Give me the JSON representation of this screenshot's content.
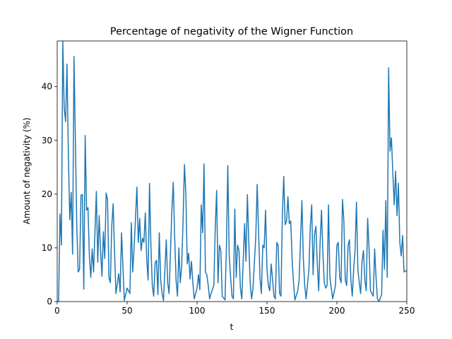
{
  "chart_data": {
    "type": "line",
    "title": "Percentage of negativity of the Wigner Function",
    "x_label": "t",
    "y_label": "Amount of negativity (%)",
    "x": [
      0,
      1,
      2,
      3,
      4,
      5,
      6,
      7,
      8,
      9,
      10,
      11,
      12,
      13,
      14,
      15,
      16,
      17,
      18,
      19,
      20,
      21,
      22,
      23,
      24,
      25,
      26,
      28,
      29,
      30,
      31,
      32,
      33,
      34,
      35,
      36,
      37,
      38,
      39,
      40,
      41,
      42,
      44,
      45,
      46,
      48,
      50,
      52,
      53,
      54,
      55,
      57,
      58,
      59,
      60,
      61,
      62,
      63,
      64,
      65,
      66,
      67,
      68,
      69,
      70,
      71,
      72,
      73,
      74,
      75,
      76,
      78,
      79,
      80,
      82,
      83,
      84,
      85,
      86,
      87,
      88,
      89,
      90,
      91,
      92,
      93,
      94,
      95,
      96,
      97,
      98,
      100,
      101,
      102,
      103,
      104,
      105,
      106,
      107,
      108,
      109,
      110,
      112,
      113,
      114,
      115,
      116,
      117,
      118,
      120,
      121,
      122,
      123,
      124,
      125,
      126,
      127,
      128,
      129,
      130,
      131,
      132,
      134,
      135,
      136,
      137,
      138,
      139,
      140,
      142,
      143,
      144,
      145,
      146,
      147,
      148,
      149,
      150,
      151,
      152,
      153,
      154,
      155,
      156,
      157,
      158,
      159,
      160,
      161,
      162,
      163,
      164,
      165,
      166,
      167,
      168,
      169,
      170,
      172,
      173,
      174,
      175,
      176,
      177,
      178,
      180,
      181,
      182,
      183,
      184,
      185,
      186,
      187,
      188,
      189,
      190,
      191,
      192,
      193,
      194,
      195,
      196,
      197,
      199,
      200,
      201,
      202,
      203,
      204,
      205,
      206,
      207,
      208,
      209,
      210,
      211,
      212,
      213,
      214,
      215,
      216,
      217,
      218,
      219,
      220,
      221,
      222,
      223,
      224,
      225,
      226,
      227,
      228,
      229,
      230,
      232,
      233,
      234,
      235,
      236,
      237,
      238,
      239,
      240,
      241,
      242,
      243,
      244,
      245,
      246,
      247,
      248,
      250
    ],
    "series": [
      {
        "name": "negativity",
        "color": "#1f77b4",
        "values": [
          0,
          0,
          16.3,
          10.5,
          48.5,
          36,
          33.5,
          44.2,
          27,
          15.2,
          20.3,
          8.8,
          45.6,
          30,
          14,
          5.5,
          6,
          19.8,
          19.9,
          2.3,
          30.9,
          17,
          17.5,
          8.5,
          4.5,
          9.8,
          5.5,
          20.5,
          7.3,
          16,
          9.5,
          4.7,
          13,
          8,
          20.2,
          19,
          4.5,
          3.5,
          14,
          18.2,
          9.3,
          1.5,
          5.2,
          1.8,
          12.8,
          0.2,
          2.5,
          1.5,
          14.7,
          5.5,
          10,
          21.3,
          11,
          15.5,
          9.5,
          11.8,
          11,
          16.5,
          8,
          4,
          22,
          10.5,
          3,
          1,
          7.2,
          7.7,
          1.3,
          12.8,
          4,
          1.5,
          0.2,
          11.5,
          3.5,
          1.5,
          17,
          22.2,
          12,
          4,
          1,
          10,
          3.5,
          6.5,
          15,
          25.5,
          20,
          7,
          9,
          4.2,
          7.5,
          3.5,
          0.5,
          2.5,
          5,
          2.2,
          18,
          12.8,
          25.6,
          5.5,
          5,
          3,
          0.5,
          1.5,
          3,
          13.5,
          20.7,
          3.5,
          10.5,
          9.5,
          1,
          0.3,
          10,
          25.3,
          8.5,
          4.5,
          1,
          0.5,
          17.2,
          4.5,
          10.5,
          9.5,
          2.5,
          0.5,
          14.5,
          7.5,
          19.9,
          11,
          3.5,
          0.5,
          2.5,
          12,
          21.8,
          13,
          4.5,
          1.5,
          10.5,
          10,
          17,
          6,
          3,
          2,
          7,
          4.2,
          1,
          0.5,
          11,
          10.5,
          1.5,
          1,
          16,
          23.3,
          14.3,
          15,
          19.5,
          14.5,
          15,
          7.8,
          3.5,
          0.3,
          2,
          4,
          11.5,
          18.8,
          8,
          3,
          0.5,
          6,
          14,
          18,
          5,
          12.5,
          14,
          7,
          2,
          11,
          17,
          9,
          3.5,
          2.5,
          3,
          18,
          4.5,
          2.5,
          0.5,
          3,
          10.5,
          11,
          4.5,
          3.5,
          19,
          15,
          4,
          3,
          10.5,
          11.5,
          4,
          1,
          6,
          9.5,
          18.5,
          6,
          3.5,
          1.5,
          7.5,
          9.5,
          4,
          2,
          15.5,
          10,
          2,
          1.5,
          1,
          9.8,
          4.5,
          0.5,
          0,
          1.3,
          13.3,
          6,
          18.8,
          4.5,
          43.5,
          28,
          30.5,
          24,
          18,
          24.3,
          16,
          22,
          11,
          8.5,
          12.3,
          5.5,
          5.8
        ]
      }
    ],
    "xlim": [
      0,
      250
    ],
    "xticks": [
      0,
      50,
      100,
      150,
      200,
      250
    ],
    "ylim": [
      0,
      48.5
    ],
    "yticks": [
      0,
      10,
      20,
      30,
      40
    ]
  }
}
